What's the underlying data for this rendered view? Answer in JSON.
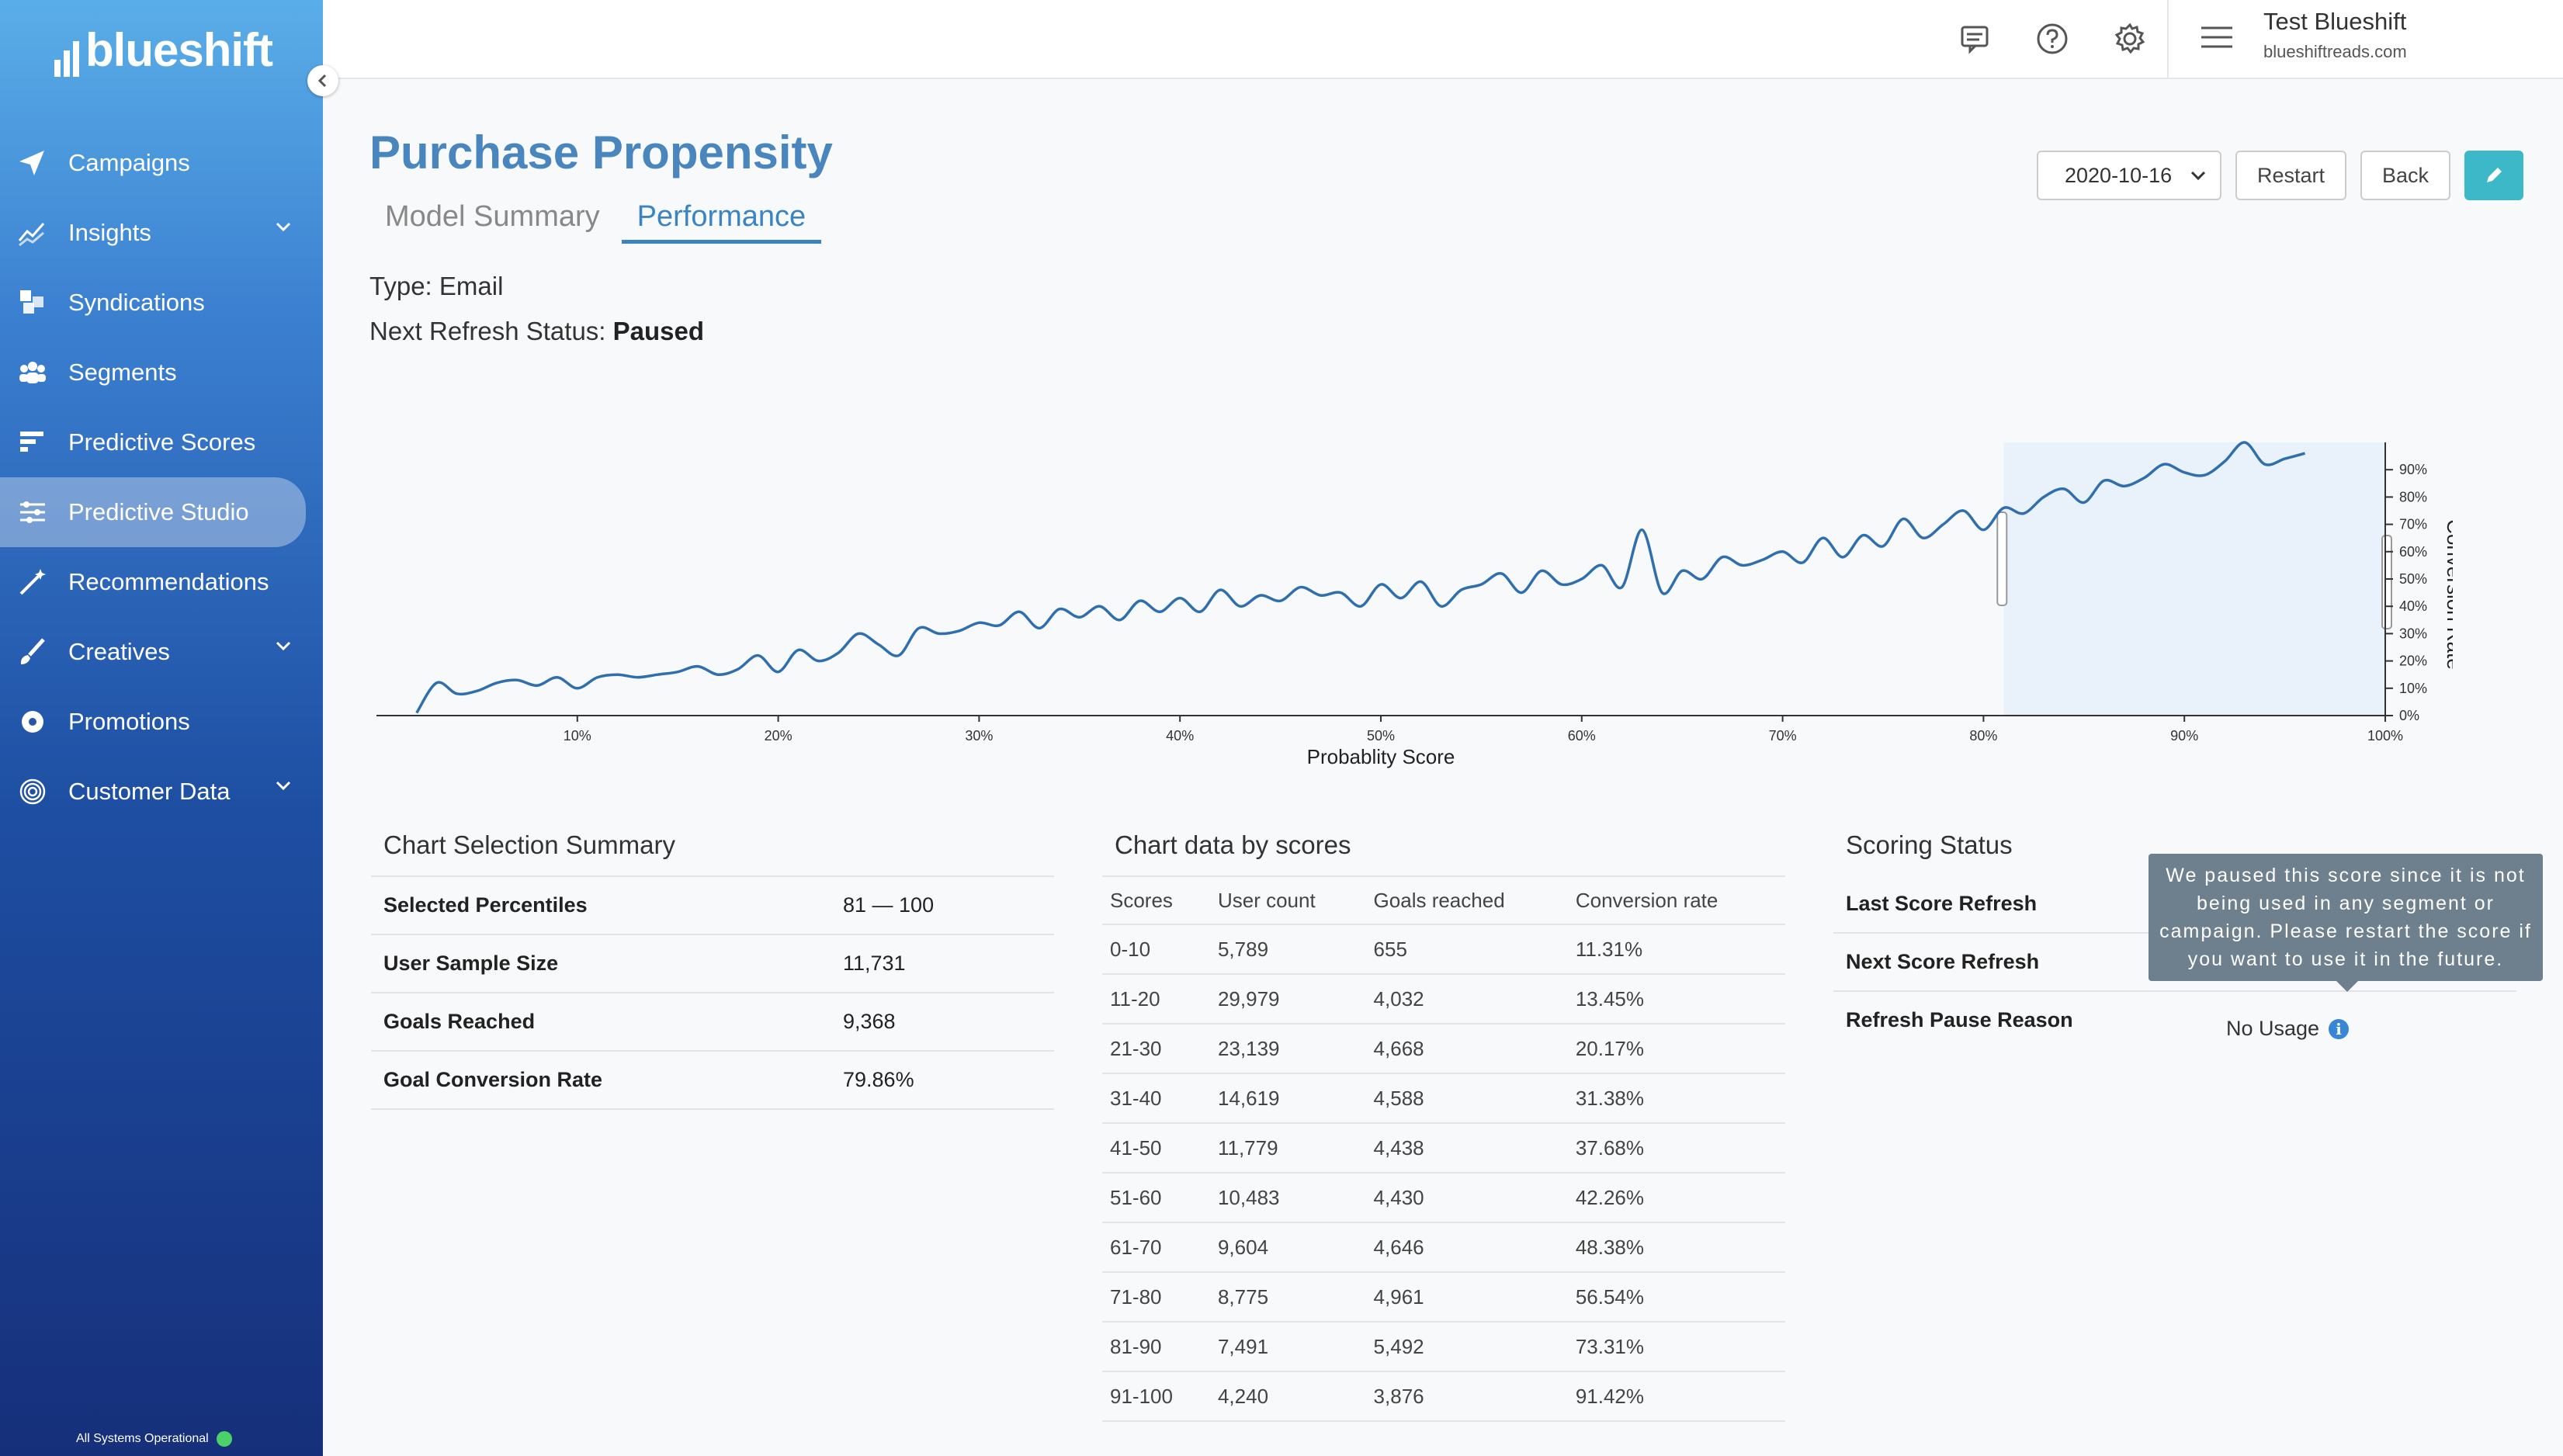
{
  "sidebar": {
    "brand": "blueshift",
    "items": [
      {
        "label": "Campaigns",
        "icon": "paper-plane-icon",
        "chevron": false
      },
      {
        "label": "Insights",
        "icon": "trend-chart-icon",
        "chevron": true
      },
      {
        "label": "Syndications",
        "icon": "grid-squares-icon",
        "chevron": false
      },
      {
        "label": "Segments",
        "icon": "users-group-icon",
        "chevron": false
      },
      {
        "label": "Predictive Scores",
        "icon": "bar-lines-icon",
        "chevron": false
      },
      {
        "label": "Predictive Studio",
        "icon": "sliders-icon",
        "chevron": false,
        "active": true
      },
      {
        "label": "Recommendations",
        "icon": "magic-wand-icon",
        "chevron": false
      },
      {
        "label": "Creatives",
        "icon": "brush-icon",
        "chevron": true
      },
      {
        "label": "Promotions",
        "icon": "badge-gear-icon",
        "chevron": false
      },
      {
        "label": "Customer Data",
        "icon": "fingerprint-icon",
        "chevron": true
      }
    ],
    "system_status": "All Systems Operational",
    "system_status_color": "#4bd06a"
  },
  "topbar": {
    "icons": [
      "chat-icon",
      "help-icon",
      "settings-gear-icon"
    ],
    "user_name": "Test Blueshift",
    "user_domain": "blueshiftreads.com"
  },
  "page": {
    "title": "Purchase Propensity",
    "tabs": [
      {
        "label": "Model Summary",
        "active": false
      },
      {
        "label": "Performance",
        "active": true
      }
    ],
    "type_line": "Type: Email",
    "refresh_label": "Next Refresh Status: ",
    "refresh_value": "Paused",
    "accent_color": "#4a86be"
  },
  "actions": {
    "date_value": "2020-10-16",
    "restart_label": "Restart",
    "back_label": "Back",
    "edit_icon": "pencil-icon"
  },
  "chart_data": {
    "type": "line",
    "xlabel": "Probablity Score",
    "ylabel": "Conversion Rate",
    "x_ticks": [
      "10%",
      "20%",
      "30%",
      "40%",
      "50%",
      "60%",
      "70%",
      "80%",
      "90%",
      "100%"
    ],
    "y_ticks": [
      "0%",
      "10%",
      "20%",
      "30%",
      "40%",
      "50%",
      "60%",
      "70%",
      "80%",
      "90%"
    ],
    "xlim": [
      0,
      100
    ],
    "ylim": [
      0,
      100
    ],
    "selection_range": [
      81,
      100
    ],
    "line_color": "#2f6fad",
    "selection_color": "#e9f1fb",
    "x": [
      2,
      3,
      4,
      5,
      6,
      7,
      8,
      9,
      10,
      11,
      12,
      13,
      14,
      15,
      16,
      17,
      18,
      19,
      20,
      21,
      22,
      23,
      24,
      25,
      26,
      27,
      28,
      29,
      30,
      31,
      32,
      33,
      34,
      35,
      36,
      37,
      38,
      39,
      40,
      41,
      42,
      43,
      44,
      45,
      46,
      47,
      48,
      49,
      50,
      51,
      52,
      53,
      54,
      55,
      56,
      57,
      58,
      59,
      60,
      61,
      62,
      63,
      64,
      65,
      66,
      67,
      68,
      69,
      70,
      71,
      72,
      73,
      74,
      75,
      76,
      77,
      78,
      79,
      80,
      81,
      82,
      83,
      84,
      85,
      86,
      87,
      88,
      89,
      90,
      91,
      92,
      93,
      94,
      95,
      96
    ],
    "y": [
      1,
      12,
      8,
      9,
      12,
      13,
      11,
      14,
      10,
      14,
      15,
      14,
      15,
      16,
      18,
      15,
      17,
      22,
      16,
      24,
      20,
      23,
      30,
      26,
      22,
      32,
      30,
      31,
      34,
      33,
      38,
      32,
      39,
      36,
      40,
      35,
      42,
      38,
      43,
      38,
      46,
      40,
      44,
      42,
      47,
      44,
      45,
      40,
      48,
      43,
      49,
      40,
      46,
      48,
      52,
      45,
      53,
      48,
      50,
      55,
      47,
      68,
      45,
      53,
      50,
      58,
      55,
      57,
      60,
      56,
      65,
      58,
      66,
      62,
      72,
      65,
      70,
      75,
      68,
      76,
      74,
      80,
      83,
      78,
      86,
      84,
      87,
      92,
      89,
      88,
      93,
      100,
      92,
      94,
      96
    ]
  },
  "selection_summary": {
    "title": "Chart Selection Summary",
    "rows": [
      {
        "label": "Selected Percentiles",
        "value": "81 — 100"
      },
      {
        "label": "User Sample Size",
        "value": "11,731"
      },
      {
        "label": "Goals Reached",
        "value": "9,368"
      },
      {
        "label": "Goal Conversion Rate",
        "value": "79.86%"
      }
    ]
  },
  "scores_table": {
    "title": "Chart data by scores",
    "headers": [
      "Scores",
      "User count",
      "Goals reached",
      "Conversion rate"
    ],
    "rows": [
      [
        "0-10",
        "5,789",
        "655",
        "11.31%"
      ],
      [
        "11-20",
        "29,979",
        "4,032",
        "13.45%"
      ],
      [
        "21-30",
        "23,139",
        "4,668",
        "20.17%"
      ],
      [
        "31-40",
        "14,619",
        "4,588",
        "31.38%"
      ],
      [
        "41-50",
        "11,779",
        "4,438",
        "37.68%"
      ],
      [
        "51-60",
        "10,483",
        "4,430",
        "42.26%"
      ],
      [
        "61-70",
        "9,604",
        "4,646",
        "48.38%"
      ],
      [
        "71-80",
        "8,775",
        "4,961",
        "56.54%"
      ],
      [
        "81-90",
        "7,491",
        "5,492",
        "73.31%"
      ],
      [
        "91-100",
        "4,240",
        "3,876",
        "91.42%"
      ]
    ]
  },
  "scoring_status": {
    "title": "Scoring Status",
    "rows": [
      {
        "label": "Last Score Refresh"
      },
      {
        "label": "Next Score Refresh"
      },
      {
        "label": "Refresh Pause Reason"
      }
    ],
    "pause_reason_value": "No Usage",
    "tooltip": "We paused this score since it is not being used in any segment or campaign. Please restart the score if you want to use it in the future."
  }
}
